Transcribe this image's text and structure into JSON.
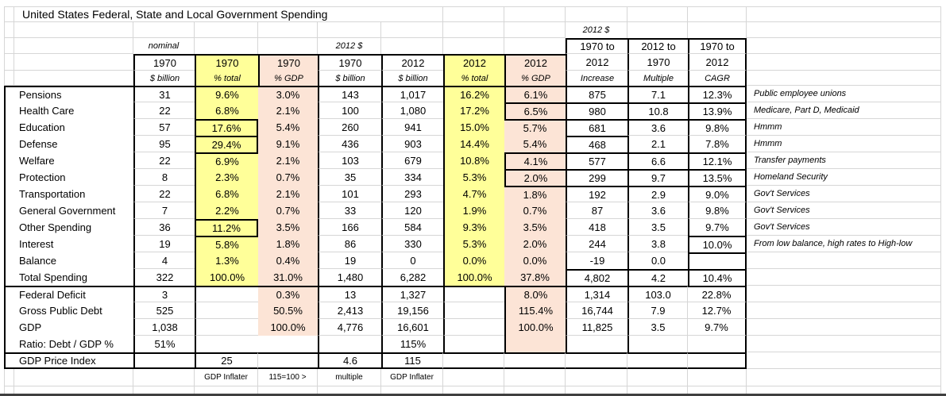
{
  "title": "United States Federal, State and Local Government Spending",
  "colors": {
    "highlight_yellow": "#ffff99",
    "highlight_peach": "#fce4d6",
    "gridline": "#d6d6d6",
    "table_border": "#000000",
    "window_edge": "#3f3f3f"
  },
  "table": {
    "super_labels": {
      "nominal": "nominal",
      "real_1970": "2012 $",
      "real_increase": "2012 $"
    },
    "header_line1": {
      "inc": "1970 to",
      "mult": "2012 to",
      "cagr": "1970 to"
    },
    "years": [
      "1970",
      "1970",
      "1970",
      "1970",
      "2012",
      "2012",
      "2012",
      "2012",
      "1970",
      "2012"
    ],
    "units": [
      "$ billion",
      "% total",
      "% GDP",
      "$ billion",
      "$ billion",
      "% total",
      "% GDP",
      "Increase",
      "Multiple",
      "CAGR"
    ],
    "rows": [
      {
        "label": "Pensions",
        "cells": [
          "31",
          "9.6%",
          "3.0%",
          "143",
          "1,017",
          "16.2%",
          "6.1%",
          "875",
          "7.1",
          "12.3%"
        ],
        "note": "Public employee unions"
      },
      {
        "label": "Health Care",
        "cells": [
          "22",
          "6.8%",
          "2.1%",
          "100",
          "1,080",
          "17.2%",
          "6.5%",
          "980",
          "10.8",
          "13.9%"
        ],
        "note": "Medicare, Part D, Medicaid"
      },
      {
        "label": "Education",
        "cells": [
          "57",
          "17.6%",
          "5.4%",
          "260",
          "941",
          "15.0%",
          "5.7%",
          "681",
          "3.6",
          "9.8%"
        ],
        "note": "Hmmm"
      },
      {
        "label": "Defense",
        "cells": [
          "95",
          "29.4%",
          "9.1%",
          "436",
          "903",
          "14.4%",
          "5.4%",
          "468",
          "2.1",
          "7.8%"
        ],
        "note": "Hmmm"
      },
      {
        "label": "Welfare",
        "cells": [
          "22",
          "6.9%",
          "2.1%",
          "103",
          "679",
          "10.8%",
          "4.1%",
          "577",
          "6.6",
          "12.1%"
        ],
        "note": "Transfer payments"
      },
      {
        "label": "Protection",
        "cells": [
          "8",
          "2.3%",
          "0.7%",
          "35",
          "334",
          "5.3%",
          "2.0%",
          "299",
          "9.7",
          "13.5%"
        ],
        "note": "Homeland Security"
      },
      {
        "label": "Transportation",
        "cells": [
          "22",
          "6.8%",
          "2.1%",
          "101",
          "293",
          "4.7%",
          "1.8%",
          "192",
          "2.9",
          "9.0%"
        ],
        "note": "Gov't Services"
      },
      {
        "label": "General Government",
        "cells": [
          "7",
          "2.2%",
          "0.7%",
          "33",
          "120",
          "1.9%",
          "0.7%",
          "87",
          "3.6",
          "9.8%"
        ],
        "note": "Gov't Services"
      },
      {
        "label": "Other Spending",
        "cells": [
          "36",
          "11.2%",
          "3.5%",
          "166",
          "584",
          "9.3%",
          "3.5%",
          "418",
          "3.5",
          "9.7%"
        ],
        "note": "Gov't Services"
      },
      {
        "label": "Interest",
        "cells": [
          "19",
          "5.8%",
          "1.8%",
          "86",
          "330",
          "5.3%",
          "2.0%",
          "244",
          "3.8",
          "10.0%"
        ],
        "note": "From low balance, high rates to High-low"
      },
      {
        "label": "Balance",
        "cells": [
          "4",
          "1.3%",
          "0.4%",
          "19",
          "0",
          "0.0%",
          "0.0%",
          "-19",
          "0.0",
          ""
        ],
        "note": ""
      },
      {
        "label": "Total Spending",
        "cells": [
          "322",
          "100.0%",
          "31.0%",
          "1,480",
          "6,282",
          "100.0%",
          "37.8%",
          "4,802",
          "4.2",
          "10.4%"
        ],
        "note": ""
      }
    ],
    "deficit_rows": [
      {
        "label": "Federal Deficit",
        "cells": [
          "3",
          "",
          "0.3%",
          "13",
          "1,327",
          "",
          "8.0%",
          "1,314",
          "103.0",
          "22.8%"
        ]
      },
      {
        "label": "Gross Public Debt",
        "cells": [
          "525",
          "",
          "50.5%",
          "2,413",
          "19,156",
          "",
          "115.4%",
          "16,744",
          "7.9",
          "12.7%"
        ]
      },
      {
        "label": "GDP",
        "cells": [
          "1,038",
          "",
          "100.0%",
          "4,776",
          "16,601",
          "",
          "100.0%",
          "11,825",
          "3.5",
          "9.7%"
        ]
      },
      {
        "label": "Ratio: Debt / GDP  %",
        "cells": [
          "51%",
          "",
          "",
          "",
          "115%",
          "",
          "",
          "",
          "",
          ""
        ]
      }
    ],
    "price_row": {
      "label": "GDP Price Index",
      "cells": [
        "",
        "25",
        "",
        "4.6",
        "115",
        "",
        "",
        "",
        "",
        ""
      ]
    },
    "footnote_row": {
      "cells": [
        "",
        "GDP Inflater",
        "115=100 >",
        "multiple",
        "GDP Inflater",
        "",
        "",
        "",
        "",
        ""
      ]
    }
  }
}
